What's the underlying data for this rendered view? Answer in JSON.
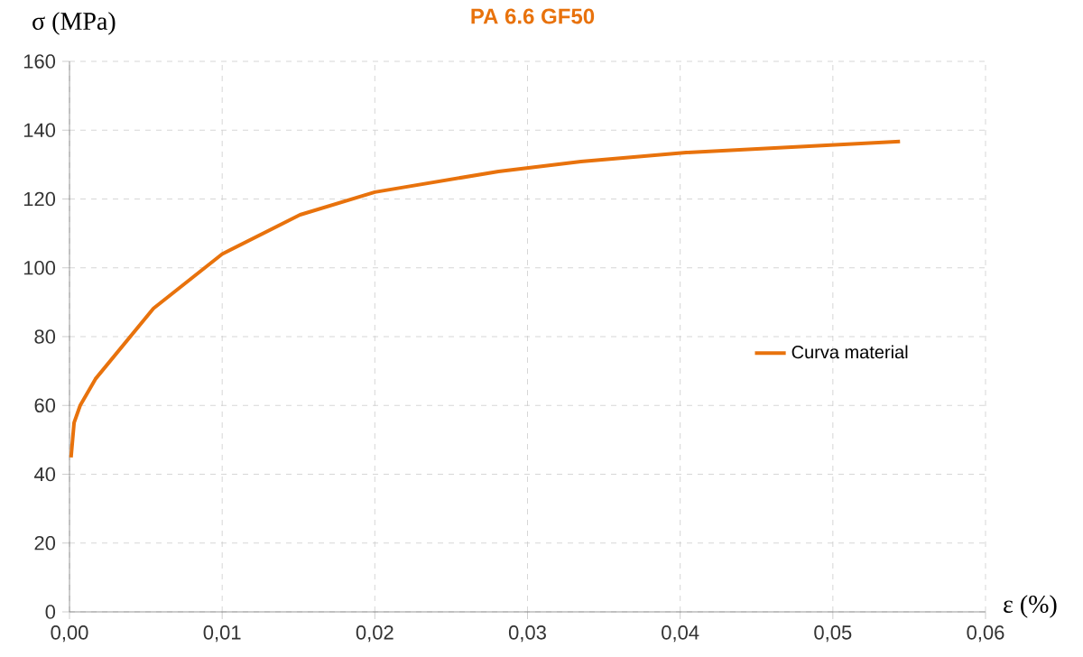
{
  "chart_data": {
    "type": "line",
    "title": "PA 6.6 GF50",
    "xlabel": "ε (%)",
    "ylabel": "σ (MPa)",
    "x": [
      0.0001,
      0.0003,
      0.0007,
      0.0017,
      0.0055,
      0.01,
      0.0151,
      0.02,
      0.0281,
      0.0335,
      0.0404,
      0.0544
    ],
    "series": [
      {
        "name": "Curva material",
        "color": "#e8720c",
        "values": [
          44.9,
          55,
          60,
          67.7,
          88.2,
          104,
          115.4,
          122,
          128,
          130.9,
          133.5,
          136.7
        ]
      }
    ],
    "xlim": [
      0,
      0.06
    ],
    "ylim": [
      0,
      160
    ],
    "xticks": [
      {
        "value": 0,
        "label": "0,00"
      },
      {
        "value": 0.01,
        "label": "0,01"
      },
      {
        "value": 0.02,
        "label": "0,02"
      },
      {
        "value": 0.03,
        "label": "0,03"
      },
      {
        "value": 0.04,
        "label": "0,04"
      },
      {
        "value": 0.05,
        "label": "0,05"
      },
      {
        "value": 0.06,
        "label": "0,06"
      }
    ],
    "yticks": [
      0,
      20,
      40,
      60,
      80,
      100,
      120,
      140,
      160
    ],
    "grid": true,
    "legend": "right",
    "marker": "none",
    "line_style": "solid"
  }
}
